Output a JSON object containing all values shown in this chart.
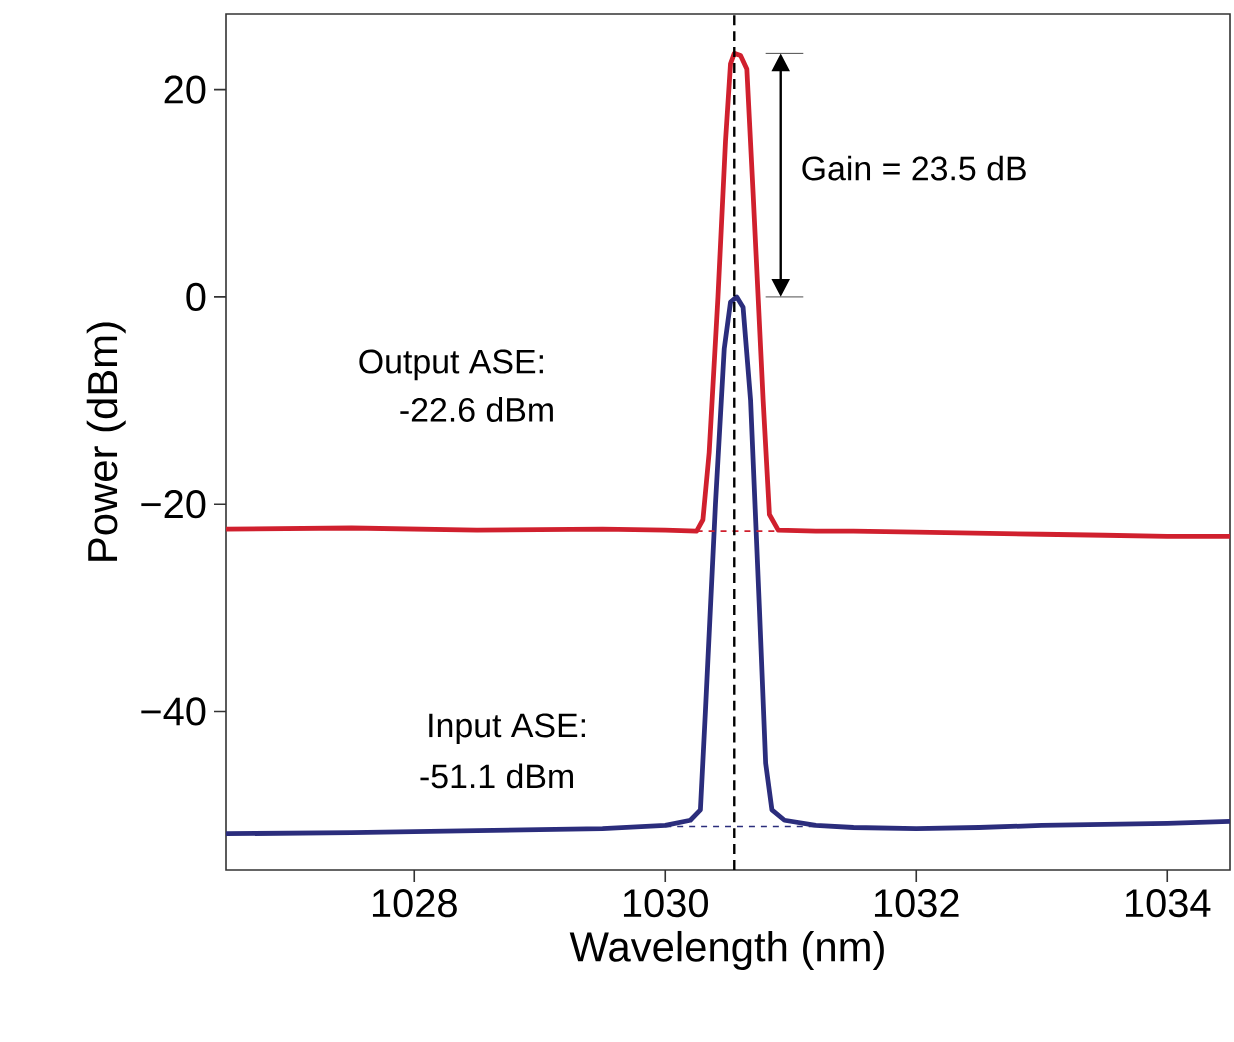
{
  "chart_data": {
    "type": "line",
    "xlabel": "Wavelength (nm)",
    "ylabel": "Power (dBm)",
    "xlim": [
      1026.5,
      1034.5
    ],
    "ylim": [
      -55.3,
      27.3
    ],
    "xticks": [
      1028,
      1030,
      1032,
      1034
    ],
    "yticks": [
      {
        "value": -40,
        "label": "−40"
      },
      {
        "value": -20,
        "label": "−20"
      },
      {
        "value": 0,
        "label": "0"
      },
      {
        "value": 20,
        "label": "20"
      }
    ],
    "series": [
      {
        "color": "#d0202e",
        "x": [
          1026.5,
          1027.5,
          1028.5,
          1029.5,
          1030.0,
          1030.25,
          1030.3,
          1030.35,
          1030.42,
          1030.48,
          1030.52,
          1030.55,
          1030.6,
          1030.65,
          1030.7,
          1030.78,
          1030.83,
          1030.9,
          1031.2,
          1031.5,
          1032.0,
          1032.5,
          1033.0,
          1033.5,
          1034.0,
          1034.5
        ],
        "values": [
          -22.4,
          -22.3,
          -22.5,
          -22.4,
          -22.5,
          -22.6,
          -21.5,
          -15,
          0,
          15,
          22.5,
          23.5,
          23.3,
          22,
          10,
          -10,
          -21,
          -22.5,
          -22.6,
          -22.6,
          -22.7,
          -22.8,
          -22.9,
          -23.0,
          -23.1,
          -23.1
        ]
      },
      {
        "color": "#2b2d7c",
        "x": [
          1026.5,
          1027.5,
          1028.5,
          1029.5,
          1030.0,
          1030.2,
          1030.28,
          1030.32,
          1030.4,
          1030.47,
          1030.52,
          1030.57,
          1030.62,
          1030.68,
          1030.75,
          1030.8,
          1030.85,
          1030.95,
          1031.2,
          1031.5,
          1032.0,
          1032.5,
          1033.0,
          1033.5,
          1034.0,
          1034.5
        ],
        "values": [
          -51.8,
          -51.7,
          -51.5,
          -51.3,
          -51.0,
          -50.5,
          -49.5,
          -40,
          -20,
          -5,
          -0.5,
          0,
          -1,
          -10,
          -30,
          -45,
          -49.5,
          -50.5,
          -51.0,
          -51.2,
          -51.3,
          -51.2,
          -51.0,
          -50.9,
          -50.8,
          -50.6
        ]
      },
      {
        "color": "#d0202e",
        "line_style": "dashed",
        "x": [
          1030.25,
          1030.9
        ],
        "values": [
          -22.6,
          -22.6
        ]
      },
      {
        "color": "#2b2d7c",
        "line_style": "dashed",
        "x": [
          1030.0,
          1031.2
        ],
        "values": [
          -51.1,
          -51.1
        ]
      }
    ],
    "ref_lines": [
      {
        "axis": "x",
        "value": 1030.55,
        "color": "#000000",
        "line_style": "dashed"
      }
    ],
    "annotations": [
      "Output ASE:",
      "-22.6 dBm",
      "Input ASE:",
      "-51.1 dBm",
      "Gain = 23.5 dB"
    ]
  }
}
